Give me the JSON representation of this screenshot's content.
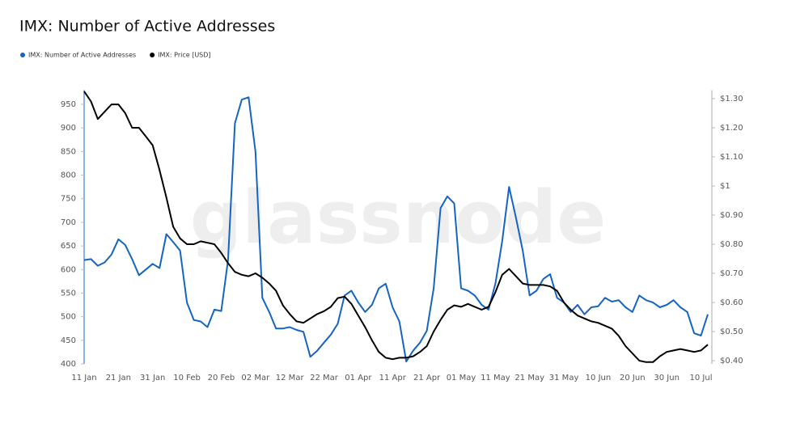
{
  "chart_data": {
    "type": "line",
    "title": "IMX: Number of Active Addresses",
    "watermark": "glassnode",
    "legend": "top-left",
    "categories": [
      "11 Jan",
      null,
      null,
      null,
      null,
      "21 Jan",
      null,
      null,
      null,
      null,
      "31 Jan",
      null,
      null,
      null,
      null,
      "10 Feb",
      null,
      null,
      null,
      null,
      "20 Feb",
      null,
      null,
      null,
      null,
      "02 Mar",
      null,
      null,
      null,
      null,
      "12 Mar",
      null,
      null,
      null,
      null,
      "22 Mar",
      null,
      null,
      null,
      null,
      "01 Apr",
      null,
      null,
      null,
      null,
      "11 Apr",
      null,
      null,
      null,
      null,
      "21 Apr",
      null,
      null,
      null,
      null,
      "01 May",
      null,
      null,
      null,
      null,
      "11 May",
      null,
      null,
      null,
      null,
      "21 May",
      null,
      null,
      null,
      null,
      "31 May",
      null,
      null,
      null,
      null,
      "10 Jun",
      null,
      null,
      null,
      null,
      "20 Jun",
      null,
      null,
      null,
      null,
      "30 Jun",
      null,
      null,
      null,
      null,
      "10 Jul",
      null
    ],
    "series": [
      {
        "name": "IMX: Number of Active Addresses",
        "color": "#1565c0",
        "axis": "y",
        "values": [
          620,
          622,
          608,
          615,
          632,
          664,
          652,
          622,
          588,
          600,
          612,
          603,
          675,
          658,
          640,
          530,
          493,
          490,
          478,
          515,
          512,
          620,
          910,
          960,
          965,
          850,
          540,
          510,
          475,
          475,
          478,
          472,
          468,
          415,
          428,
          445,
          462,
          485,
          545,
          555,
          530,
          510,
          525,
          560,
          570,
          520,
          490,
          405,
          428,
          445,
          470,
          560,
          730,
          755,
          740,
          560,
          555,
          545,
          525,
          515,
          570,
          660,
          775,
          710,
          640,
          545,
          555,
          580,
          590,
          540,
          530,
          510,
          525,
          505,
          520,
          522,
          540,
          532,
          535,
          520,
          510,
          545,
          535,
          530,
          520,
          525,
          535,
          520,
          510,
          465,
          460,
          505
        ]
      },
      {
        "name": "IMX: Price [USD]",
        "color": "#000000",
        "axis": "y2",
        "values": [
          1.325,
          1.29,
          1.23,
          1.255,
          1.28,
          1.28,
          1.25,
          1.2,
          1.2,
          1.17,
          1.14,
          1.055,
          0.96,
          0.86,
          0.82,
          0.8,
          0.8,
          0.81,
          0.805,
          0.8,
          0.77,
          0.735,
          0.705,
          0.695,
          0.69,
          0.7,
          0.685,
          0.665,
          0.64,
          0.59,
          0.56,
          0.535,
          0.53,
          0.545,
          0.56,
          0.57,
          0.585,
          0.615,
          0.62,
          0.595,
          0.555,
          0.515,
          0.47,
          0.43,
          0.41,
          0.405,
          0.41,
          0.41,
          0.415,
          0.43,
          0.45,
          0.5,
          0.54,
          0.575,
          0.59,
          0.585,
          0.595,
          0.585,
          0.575,
          0.585,
          0.635,
          0.695,
          0.715,
          0.69,
          0.665,
          0.66,
          0.66,
          0.66,
          0.655,
          0.64,
          0.6,
          0.575,
          0.555,
          0.545,
          0.535,
          0.53,
          0.52,
          0.51,
          0.485,
          0.45,
          0.425,
          0.4,
          0.395,
          0.395,
          0.415,
          0.43,
          0.435,
          0.44,
          0.435,
          0.43,
          0.435,
          0.455
        ]
      }
    ],
    "ylim": [
      400,
      980
    ],
    "yticks": [
      400,
      450,
      500,
      550,
      600,
      650,
      700,
      750,
      800,
      850,
      900,
      950
    ],
    "y2lim": [
      0.389,
      1.329
    ],
    "y2ticks": [
      {
        "value": 0.4,
        "label": "$0.40"
      },
      {
        "value": 0.5,
        "label": "$0.50"
      },
      {
        "value": 0.6,
        "label": "$0.60"
      },
      {
        "value": 0.7,
        "label": "$0.70"
      },
      {
        "value": 0.8,
        "label": "$0.80"
      },
      {
        "value": 0.9,
        "label": "$0.90"
      },
      {
        "value": 1,
        "label": "$1"
      },
      {
        "value": 1.1,
        "label": "$1.10"
      },
      {
        "value": 1.2,
        "label": "$1.20"
      },
      {
        "value": 1.3,
        "label": "$1.30"
      }
    ],
    "grid": false
  }
}
